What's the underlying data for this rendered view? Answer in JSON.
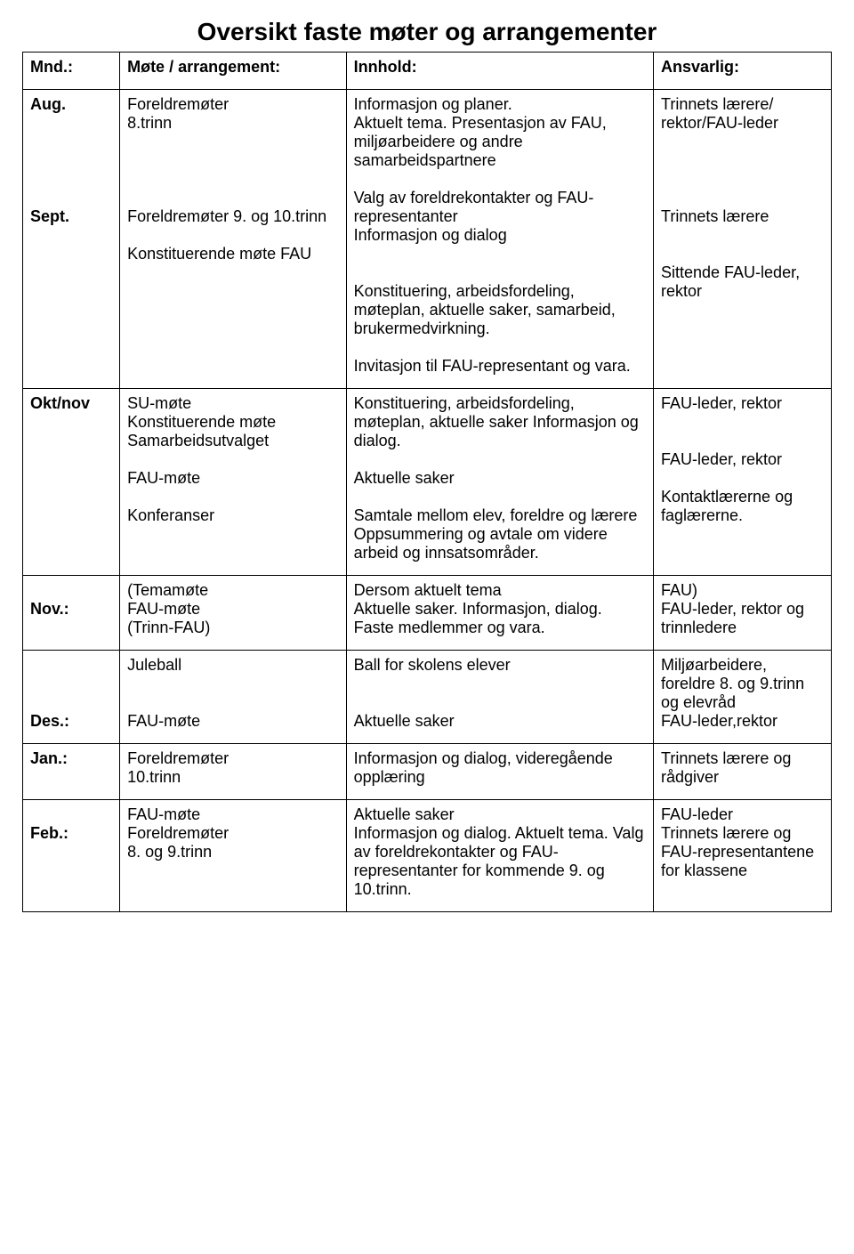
{
  "title": "Oversikt faste møter og arrangementer",
  "headers": {
    "c1": "Mnd.:",
    "c2": "Møte / arrangement:",
    "c3": "Innhold:",
    "c4": "Ansvarlig:"
  },
  "rows": [
    {
      "mnd": "Aug.\n\n\n\n\n\nSept.",
      "mote": "Foreldremøter\n8.trinn\n\n\n\n\nForeldremøter 9. og 10.trinn\n\nKonstituerende møte FAU",
      "innhold": "Informasjon og planer.\nAktuelt tema. Presentasjon av FAU, miljøarbeidere og andre samarbeidspartnere\n\nValg av foreldrekontakter og FAU-representanter\nInformasjon og dialog\n\n\nKonstituering, arbeidsfordeling, møteplan, aktuelle saker, samarbeid, brukermedvirkning.\n\nInvitasjon til FAU-representant og vara.",
      "ansvarlig": "Trinnets lærere/ rektor/FAU-leder\n\n\n\n\nTrinnets lærere\n\n\nSittende FAU-leder, rektor"
    },
    {
      "mnd": "Okt/nov",
      "mote": "SU-møte\nKonstituerende møte Samarbeidsutvalget\n\nFAU-møte\n\nKonferanser",
      "innhold": "Konstituering, arbeidsfordeling, møteplan, aktuelle saker Informasjon og dialog.\n\nAktuelle saker\n\nSamtale mellom elev, foreldre og lærere Oppsummering og avtale om videre arbeid og innsatsområder.",
      "ansvarlig": "FAU-leder, rektor\n\n\nFAU-leder, rektor\n\nKontaktlærerne og faglærerne."
    },
    {
      "mnd": "\nNov.:",
      "mote": "(Temamøte\nFAU-møte\n(Trinn-FAU)",
      "innhold": "Dersom aktuelt tema\nAktuelle saker. Informasjon, dialog. Faste medlemmer og vara.",
      "ansvarlig": "FAU)\nFAU-leder, rektor og trinnledere"
    },
    {
      "mnd": "\n\n\nDes.:",
      "mote": "Juleball\n\n\nFAU-møte",
      "innhold": "Ball for skolens elever\n\n\nAktuelle saker",
      "ansvarlig": "Miljøarbeidere, foreldre 8. og 9.trinn og elevråd\nFAU-leder,rektor"
    },
    {
      "mnd": "Jan.:",
      "mote": "Foreldremøter\n10.trinn",
      "innhold": "Informasjon og dialog, videregående opplæring",
      "ansvarlig": "Trinnets lærere og rådgiver"
    },
    {
      "mnd": "\nFeb.:",
      "mote": "FAU-møte\nForeldremøter\n8. og 9.trinn",
      "innhold": "Aktuelle saker\nInformasjon og dialog. Aktuelt tema. Valg av foreldrekontakter og FAU-representanter for kommende 9. og 10.trinn.",
      "ansvarlig": "FAU-leder\nTrinnets lærere og FAU-representantene for klassene"
    }
  ]
}
